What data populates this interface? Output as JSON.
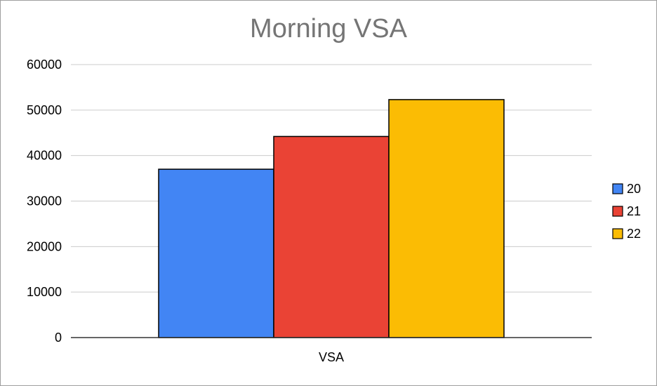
{
  "chart_data": {
    "type": "bar",
    "title": "Morning VSA",
    "categories": [
      "VSA"
    ],
    "series": [
      {
        "name": "20",
        "values": [
          37000
        ],
        "color": "#4285f4"
      },
      {
        "name": "21",
        "values": [
          44200
        ],
        "color": "#ea4335"
      },
      {
        "name": "22",
        "values": [
          52300
        ],
        "color": "#fbbc04"
      }
    ],
    "xlabel": "",
    "ylabel": "",
    "ylim": [
      0,
      60000
    ],
    "yticks": [
      "0",
      "10000",
      "20000",
      "30000",
      "40000",
      "50000",
      "60000"
    ],
    "grid": true,
    "legend": "right"
  }
}
